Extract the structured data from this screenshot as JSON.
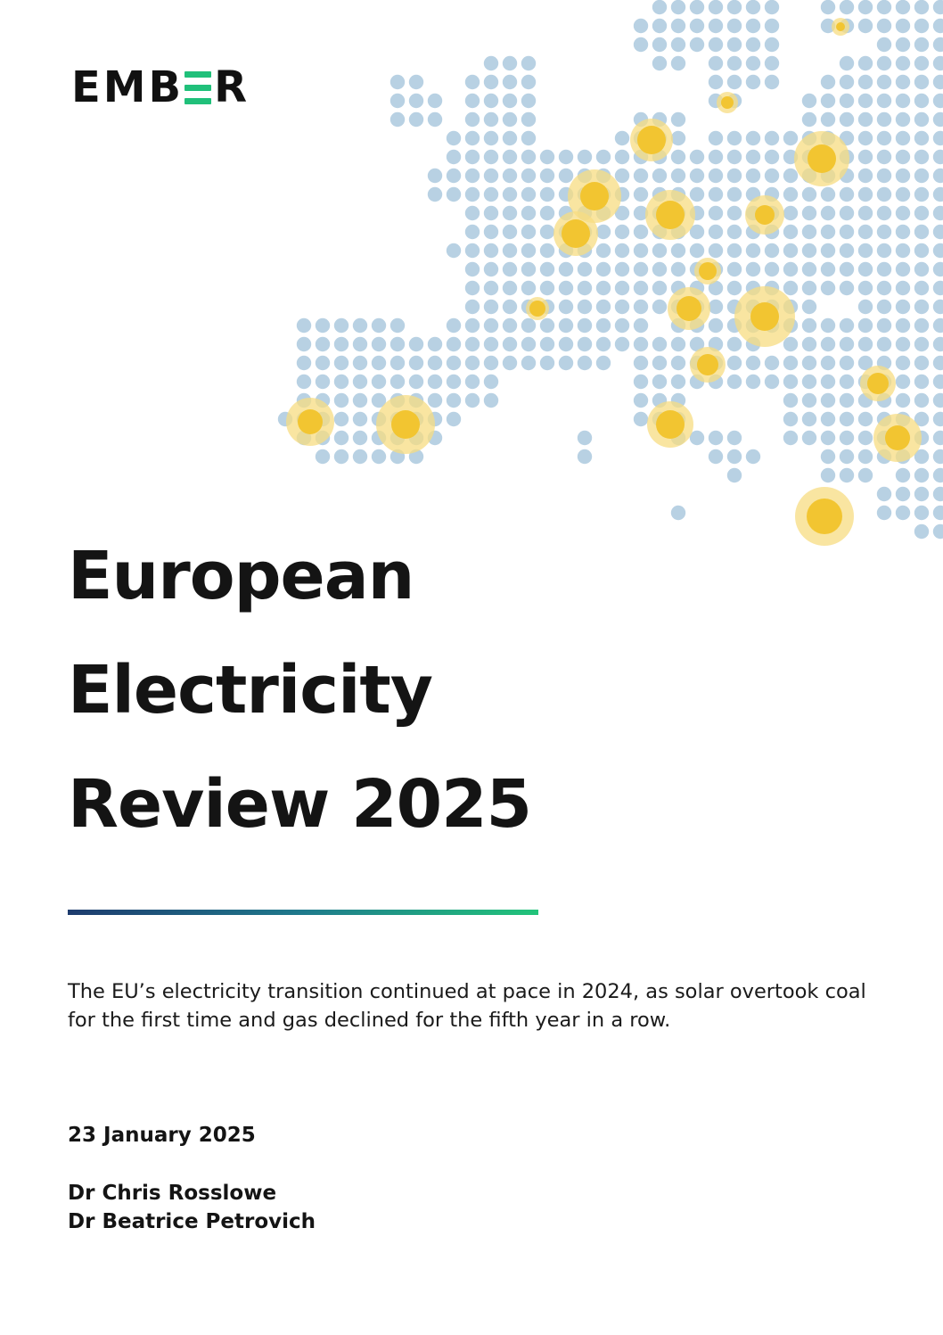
{
  "brand": {
    "logo_text": "EMBER",
    "accent_color": "#20c07a"
  },
  "cover": {
    "title_lines": [
      "European",
      "Electricity",
      "Review 2025"
    ],
    "summary": "The EU’s electricity transition continued at pace in 2024, as solar overtook coal for the first time and gas declined for the fifth year in a row.",
    "date": "23 January 2025",
    "authors": [
      "Dr Chris Rosslowe",
      "Dr Beatrice Petrovich"
    ]
  },
  "map_graphic": {
    "description_icon": "europe-dot-map",
    "dot_color": "#b8d1e3",
    "highlight_color": "#f2c531",
    "highlight_halo_color": "#f7dc82"
  },
  "rule_colors": [
    "#1e3c6e",
    "#1f7a8c",
    "#22c47a"
  ]
}
